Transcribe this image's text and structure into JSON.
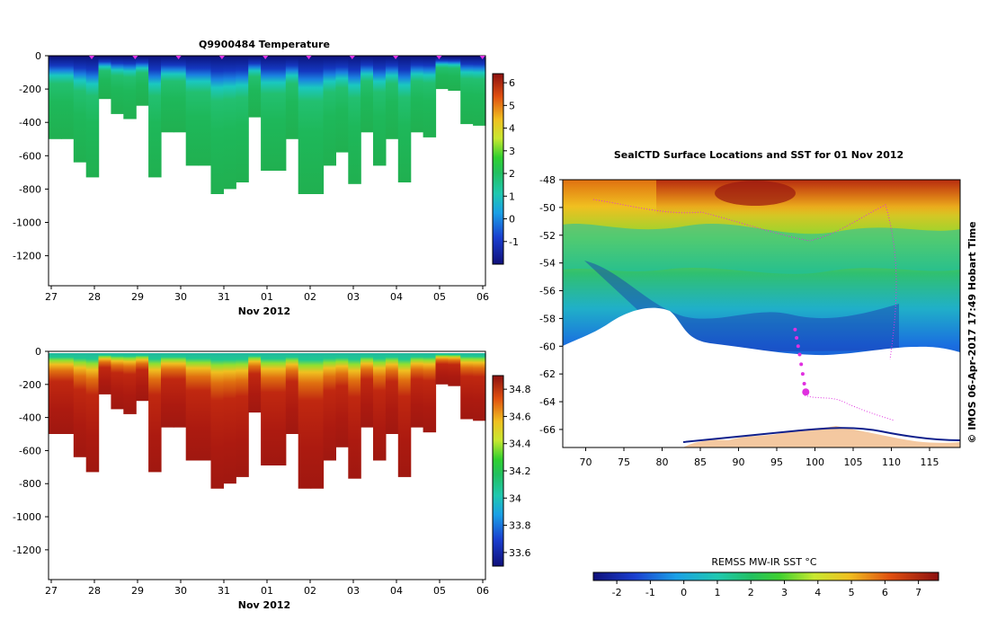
{
  "chart_data": [
    {
      "type": "heatmap",
      "title": "Q9900484  Temperature",
      "xlabel": "Nov 2012",
      "x_tick_labels": [
        "27",
        "28",
        "29",
        "30",
        "31",
        "01",
        "02",
        "03",
        "04",
        "05",
        "06"
      ],
      "y_tick_labels": [
        "0",
        "-200",
        "-400",
        "-600",
        "-800",
        "-1000",
        "-1200"
      ],
      "ylim": [
        -1380,
        0
      ],
      "colorbar_ticks": [
        "6",
        "5",
        "4",
        "3",
        "2",
        "1",
        "0",
        "-1"
      ],
      "colorbar_range": [
        -2,
        6.4
      ],
      "profile_bottom_depths": [
        -500,
        -500,
        -640,
        -730,
        -260,
        -350,
        -380,
        -300,
        -730,
        -460,
        -460,
        -660,
        -660,
        -830,
        -800,
        -760,
        -370,
        -690,
        -690,
        -500,
        -830,
        -830,
        -660,
        -580,
        -770,
        -460,
        -660,
        -500,
        -760,
        -460,
        -490,
        -200,
        -210,
        -410,
        -420
      ],
      "profile_surface_markers": 10
    },
    {
      "type": "heatmap",
      "title": "",
      "xlabel": "Nov 2012",
      "x_tick_labels": [
        "27",
        "28",
        "29",
        "30",
        "31",
        "01",
        "02",
        "03",
        "04",
        "05",
        "06"
      ],
      "y_tick_labels": [
        "0",
        "-200",
        "-400",
        "-600",
        "-800",
        "-1000",
        "-1200"
      ],
      "ylim": [
        -1380,
        0
      ],
      "colorbar_ticks": [
        "34.8",
        "34.6",
        "34.4",
        "34.2",
        "34",
        "33.8",
        "33.6"
      ],
      "colorbar_range": [
        33.5,
        34.9
      ]
    },
    {
      "type": "heatmap",
      "title": "SealCTD Surface Locations and SST for 01 Nov 2012",
      "x_tick_labels": [
        "70",
        "75",
        "80",
        "85",
        "90",
        "95",
        "100",
        "105",
        "110",
        "115"
      ],
      "y_tick_labels": [
        "-48",
        "-50",
        "-52",
        "-54",
        "-56",
        "-58",
        "-60",
        "-62",
        "-64",
        "-66"
      ],
      "xlim": [
        67,
        119
      ],
      "ylim": [
        -67.3,
        -48
      ],
      "colorbar_label": "REMSS MW-IR SST °C",
      "colorbar_ticks": [
        "-2",
        "-1",
        "0",
        "1",
        "2",
        "3",
        "4",
        "5",
        "6",
        "7"
      ],
      "colorbar_range": [
        -2.7,
        7.6
      ],
      "side_caption": "© IMOS 06-Apr-2017 17:49 Hobart Time",
      "track_lon": [
        98.8,
        98.6,
        98.4,
        98.2,
        98.0,
        97.8,
        97.6,
        97.4
      ],
      "track_lat": [
        -63.3,
        -62.7,
        -62.0,
        -61.3,
        -60.6,
        -60.0,
        -59.4,
        -58.8
      ]
    }
  ]
}
